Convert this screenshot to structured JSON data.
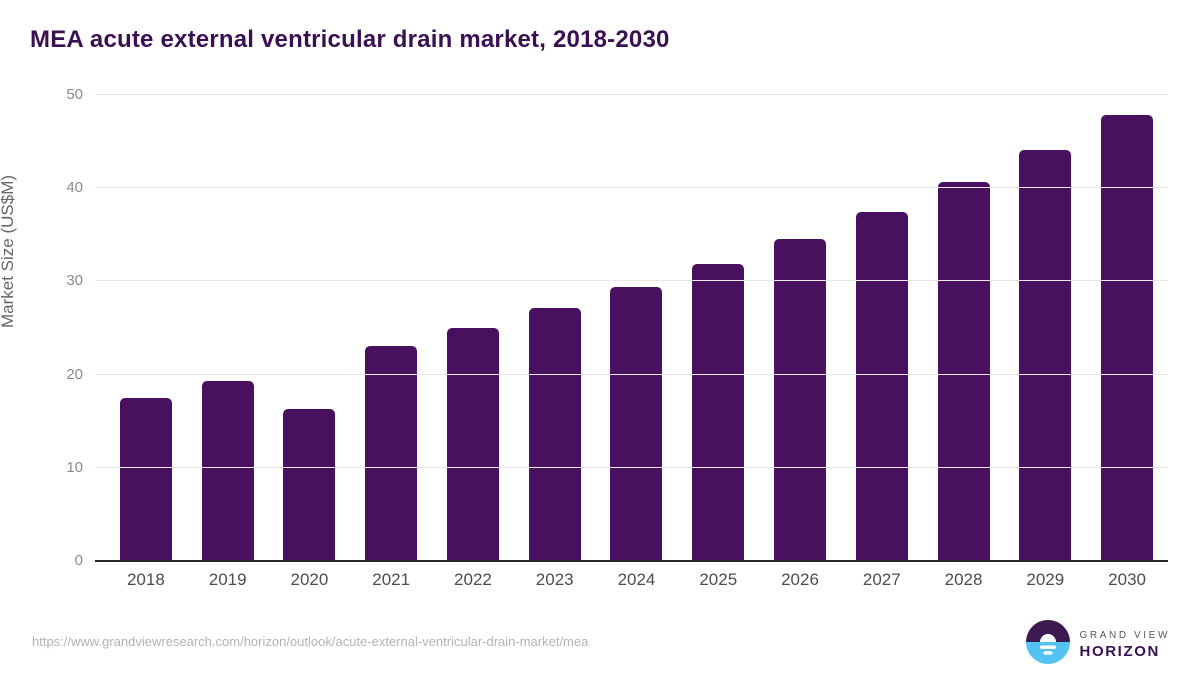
{
  "title": "MEA acute external ventricular drain market, 2018-2030",
  "colors": {
    "bar": "#4a1060",
    "title_text": "#3b1053",
    "grid": "#e8e8e8",
    "axis_line": "#262626",
    "tick_text": "#8a8a8a",
    "x_tick_text": "#4d4d4d",
    "url_text": "#b3b3b3",
    "logo_purple": "#3d1a52",
    "logo_blue": "#55c3f2"
  },
  "chart_data": {
    "type": "bar",
    "title": "MEA acute external ventricular drain market, 2018-2030",
    "categories": [
      "2018",
      "2019",
      "2020",
      "2021",
      "2022",
      "2023",
      "2024",
      "2025",
      "2026",
      "2027",
      "2028",
      "2029",
      "2030"
    ],
    "values": [
      17.5,
      19.3,
      16.3,
      23.1,
      25.0,
      27.1,
      29.4,
      31.9,
      34.6,
      37.5,
      40.7,
      44.1,
      47.9
    ],
    "xlabel": "",
    "ylabel": "Market Size (US$M)",
    "ylim": [
      0,
      50
    ],
    "yticks": [
      0,
      10,
      20,
      30,
      40,
      50
    ],
    "grid": true,
    "legend": false
  },
  "footer": {
    "source_url": "https://www.grandviewresearch.com/horizon/outlook/acute-external-ventricular-drain-market/mea",
    "logo": {
      "line1": "GRAND VIEW",
      "line2": "HORIZON"
    }
  }
}
